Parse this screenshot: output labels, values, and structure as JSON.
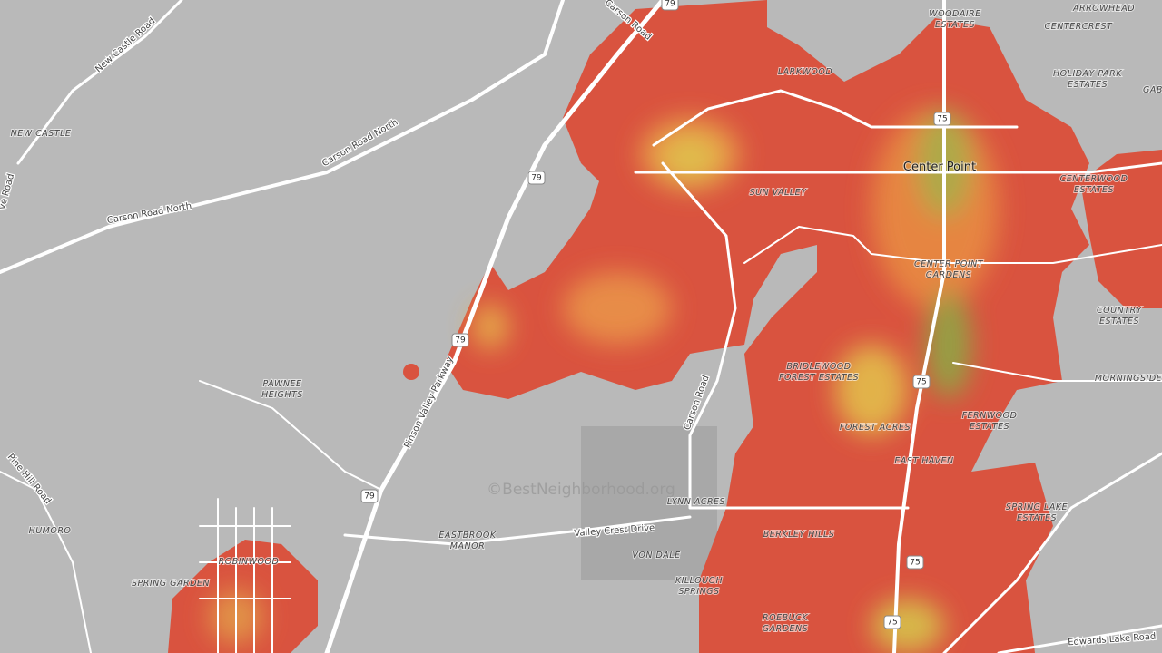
{
  "places": [
    {
      "lines": [
        "NEW CASTLE"
      ]
    },
    {
      "lines": [
        "WOODAIRE",
        "ESTATES"
      ]
    },
    {
      "lines": [
        "ARROWHEAD"
      ]
    },
    {
      "lines": [
        "CENTERCREST"
      ]
    },
    {
      "lines": [
        "HOLIDAY PARK",
        "ESTATES"
      ]
    },
    {
      "lines": [
        "LARKWOOD"
      ]
    },
    {
      "lines": [
        "Center Point"
      ]
    },
    {
      "lines": [
        "SUN VALLEY"
      ]
    },
    {
      "lines": [
        "CENTERWOOD",
        "ESTATES"
      ]
    },
    {
      "lines": [
        "CENTER POINT",
        "GARDENS"
      ]
    },
    {
      "lines": [
        "COUNTRY",
        "ESTATES"
      ]
    },
    {
      "lines": [
        "MORNINGSIDE"
      ]
    },
    {
      "lines": [
        "PAWNEE",
        "HEIGHTS"
      ]
    },
    {
      "lines": [
        "BRIDLEWOOD",
        "FOREST ESTATES"
      ]
    },
    {
      "lines": [
        "FOREST ACRES"
      ]
    },
    {
      "lines": [
        "FERNWOOD",
        "ESTATES"
      ]
    },
    {
      "lines": [
        "EAST HAVEN"
      ]
    },
    {
      "lines": [
        "SPRING LAKE",
        "ESTATES"
      ]
    },
    {
      "lines": [
        "LYNN ACRES"
      ]
    },
    {
      "lines": [
        "EASTBROOK",
        "MANOR"
      ]
    },
    {
      "lines": [
        "VON DALE"
      ]
    },
    {
      "lines": [
        "KILLOUGH",
        "SPRINGS"
      ]
    },
    {
      "lines": [
        "BERKLEY HILLS"
      ]
    },
    {
      "lines": [
        "ROEBUCK",
        "GARDENS"
      ]
    },
    {
      "lines": [
        "HUMORO"
      ]
    },
    {
      "lines": [
        "SPRING GARDEN"
      ]
    },
    {
      "lines": [
        "ROBINWOOD"
      ]
    },
    {
      "lines": [
        "GAB"
      ]
    }
  ],
  "roads": [
    "Carson Road",
    "New Castle Road",
    "Carson Road North",
    "Carson Road North",
    "Pinson Valley Parkway",
    "Carson Road",
    "Pine Hill Road",
    "Valley Crest Drive",
    "Edwards Lake Road",
    "ve Road"
  ],
  "shields": [
    "79",
    "79",
    "79",
    "79",
    "79",
    "75",
    "75",
    "75",
    "75"
  ],
  "watermark": "©BestNeighborhood.org"
}
